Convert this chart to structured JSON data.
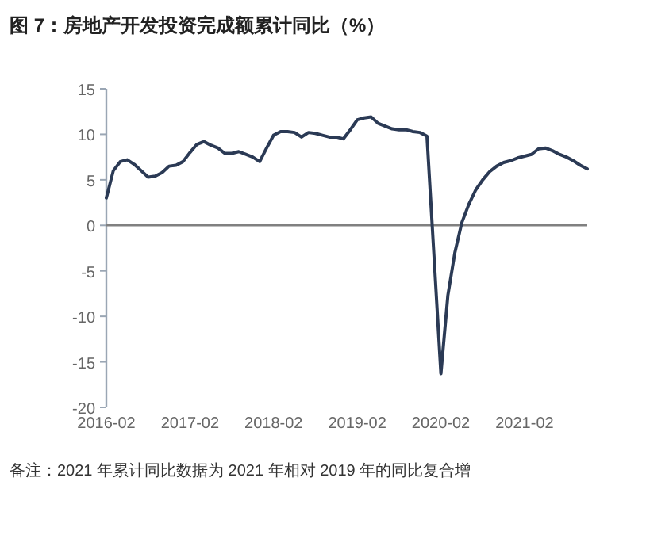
{
  "chart_data": {
    "type": "line",
    "title": "图 7：房地产开发投资完成额累计同比（%）",
    "annotations": [
      "备注：2021 年累计同比数据为 2021 年相对 2019 年的同比复合增"
    ],
    "x": [
      "2016-02",
      "2016-03",
      "2016-04",
      "2016-05",
      "2016-06",
      "2016-07",
      "2016-08",
      "2016-09",
      "2016-10",
      "2016-11",
      "2016-12",
      "2017-01",
      "2017-02",
      "2017-03",
      "2017-04",
      "2017-05",
      "2017-06",
      "2017-07",
      "2017-08",
      "2017-09",
      "2017-10",
      "2017-11",
      "2017-12",
      "2018-01",
      "2018-02",
      "2018-03",
      "2018-04",
      "2018-05",
      "2018-06",
      "2018-07",
      "2018-08",
      "2018-09",
      "2018-10",
      "2018-11",
      "2018-12",
      "2019-01",
      "2019-02",
      "2019-03",
      "2019-04",
      "2019-05",
      "2019-06",
      "2019-07",
      "2019-08",
      "2019-09",
      "2019-10",
      "2019-11",
      "2019-12",
      "2020-02",
      "2020-03",
      "2020-04",
      "2020-05",
      "2020-06",
      "2020-07",
      "2020-08",
      "2020-09",
      "2020-10",
      "2020-11",
      "2020-12",
      "2021-01",
      "2021-02",
      "2021-03",
      "2021-04",
      "2021-05",
      "2021-06",
      "2021-07",
      "2021-08",
      "2021-09",
      "2021-10",
      "2021-11"
    ],
    "series": [
      {
        "color": "#2b3a55",
        "values": [
          3.0,
          6.0,
          7.0,
          7.2,
          6.7,
          6.0,
          5.3,
          5.4,
          5.8,
          6.5,
          6.6,
          7.0,
          8.0,
          8.9,
          9.2,
          8.8,
          8.5,
          7.9,
          7.9,
          8.1,
          7.8,
          7.5,
          7.0,
          8.5,
          9.9,
          10.3,
          10.3,
          10.2,
          9.7,
          10.2,
          10.1,
          9.9,
          9.7,
          9.7,
          9.5,
          10.5,
          11.6,
          11.8,
          11.9,
          11.2,
          10.9,
          10.6,
          10.5,
          10.5,
          10.3,
          10.2,
          9.8,
          -16.3,
          -7.7,
          -3.0,
          0.3,
          2.3,
          3.9,
          5.0,
          5.9,
          6.5,
          6.9,
          7.1,
          7.4,
          7.6,
          7.8,
          8.4,
          8.5,
          8.2,
          7.8,
          7.5,
          7.1,
          6.6,
          6.2
        ]
      }
    ],
    "xlim": [
      "2016-02",
      "2021-11"
    ],
    "xticks": [
      {
        "value": "2016-02",
        "label": "2016-02"
      },
      {
        "value": "2017-02",
        "label": "2017-02"
      },
      {
        "value": "2018-02",
        "label": "2018-02"
      },
      {
        "value": "2019-02",
        "label": "2019-02"
      },
      {
        "value": "2020-02",
        "label": "2020-02"
      },
      {
        "value": "2021-02",
        "label": "2021-02"
      }
    ],
    "ylim": [
      -20,
      15
    ],
    "yticks": [
      -20,
      -15,
      -10,
      -5,
      0,
      5,
      10,
      15
    ],
    "ref_lines": [
      {
        "axis": "y",
        "value": 0,
        "color": "#808080"
      }
    ],
    "grid": false
  }
}
